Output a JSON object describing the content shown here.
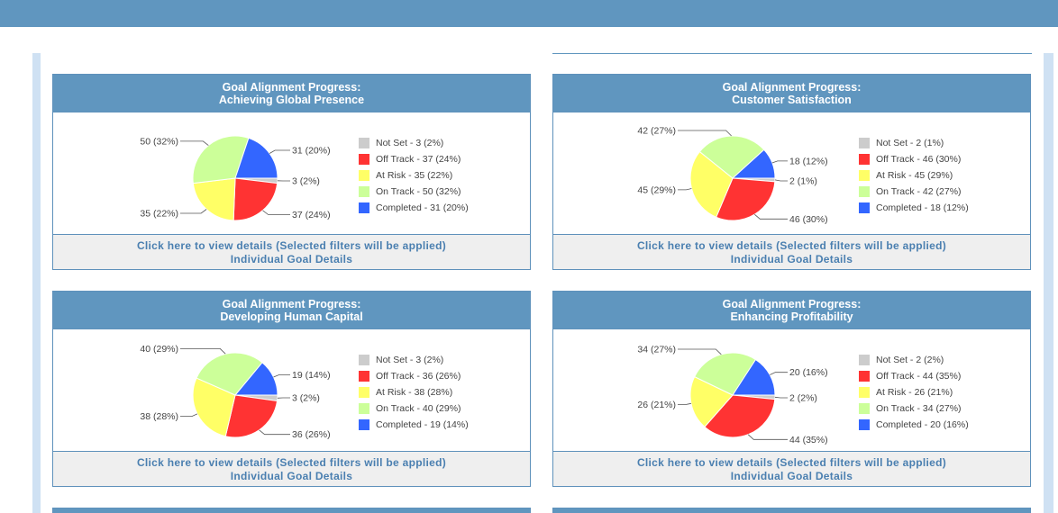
{
  "colors": {
    "header": "#6096bf",
    "not_set": "#cccccc",
    "off_track": "#ff3333",
    "at_risk": "#ffff66",
    "on_track": "#ccff99",
    "completed": "#3366ff"
  },
  "footer": {
    "link_label": "Click here to view details (Selected filters will be applied)",
    "sub_label": "Individual Goal Details"
  },
  "panels": [
    {
      "title_line1": "Goal Alignment Progress:",
      "title_line2": "Achieving Global Presence",
      "chart_data": {
        "type": "pie",
        "slices": [
          {
            "name": "Not Set",
            "value": 3,
            "pct": 2,
            "label": "3 (2%)",
            "legend": "Not Set - 3 (2%)"
          },
          {
            "name": "Off Track",
            "value": 37,
            "pct": 24,
            "label": "37 (24%)",
            "legend": "Off Track - 37 (24%)"
          },
          {
            "name": "At Risk",
            "value": 35,
            "pct": 22,
            "label": "35 (22%)",
            "legend": "At Risk - 35 (22%)"
          },
          {
            "name": "On Track",
            "value": 50,
            "pct": 32,
            "label": "50 (32%)",
            "legend": "On Track - 50 (32%)"
          },
          {
            "name": "Completed",
            "value": 31,
            "pct": 20,
            "label": "31 (20%)",
            "legend": "Completed - 31 (20%)"
          }
        ]
      }
    },
    {
      "title_line1": "Goal Alignment Progress:",
      "title_line2": "Customer Satisfaction",
      "chart_data": {
        "type": "pie",
        "slices": [
          {
            "name": "Not Set",
            "value": 2,
            "pct": 1,
            "label": "2 (1%)",
            "legend": "Not Set - 2 (1%)"
          },
          {
            "name": "Off Track",
            "value": 46,
            "pct": 30,
            "label": "46 (30%)",
            "legend": "Off Track - 46 (30%)"
          },
          {
            "name": "At Risk",
            "value": 45,
            "pct": 29,
            "label": "45 (29%)",
            "legend": "At Risk - 45 (29%)"
          },
          {
            "name": "On Track",
            "value": 42,
            "pct": 27,
            "label": "42 (27%)",
            "legend": "On Track - 42 (27%)"
          },
          {
            "name": "Completed",
            "value": 18,
            "pct": 12,
            "label": "18 (12%)",
            "legend": "Completed - 18 (12%)"
          }
        ]
      }
    },
    {
      "title_line1": "Goal Alignment Progress:",
      "title_line2": "Developing Human Capital",
      "chart_data": {
        "type": "pie",
        "slices": [
          {
            "name": "Not Set",
            "value": 3,
            "pct": 2,
            "label": "3 (2%)",
            "legend": "Not Set - 3 (2%)"
          },
          {
            "name": "Off Track",
            "value": 36,
            "pct": 26,
            "label": "36 (26%)",
            "legend": "Off Track - 36 (26%)"
          },
          {
            "name": "At Risk",
            "value": 38,
            "pct": 28,
            "label": "38 (28%)",
            "legend": "At Risk - 38 (28%)"
          },
          {
            "name": "On Track",
            "value": 40,
            "pct": 29,
            "label": "40 (29%)",
            "legend": "On Track - 40 (29%)"
          },
          {
            "name": "Completed",
            "value": 19,
            "pct": 14,
            "label": "19 (14%)",
            "legend": "Completed - 19 (14%)"
          }
        ]
      }
    },
    {
      "title_line1": "Goal Alignment Progress:",
      "title_line2": "Enhancing Profitability",
      "chart_data": {
        "type": "pie",
        "slices": [
          {
            "name": "Not Set",
            "value": 2,
            "pct": 2,
            "label": "2 (2%)",
            "legend": "Not Set - 2 (2%)"
          },
          {
            "name": "Off Track",
            "value": 44,
            "pct": 35,
            "label": "44 (35%)",
            "legend": "Off Track - 44 (35%)"
          },
          {
            "name": "At Risk",
            "value": 26,
            "pct": 21,
            "label": "26 (21%)",
            "legend": "At Risk - 26 (21%)"
          },
          {
            "name": "On Track",
            "value": 34,
            "pct": 27,
            "label": "34 (27%)",
            "legend": "On Track - 34 (27%)"
          },
          {
            "name": "Completed",
            "value": 20,
            "pct": 16,
            "label": "20 (16%)",
            "legend": "Completed - 20 (16%)"
          }
        ]
      }
    }
  ]
}
